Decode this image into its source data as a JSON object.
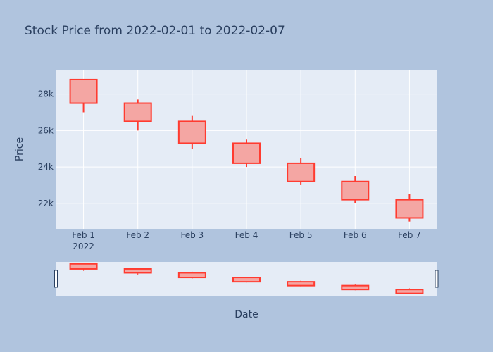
{
  "chart_data": {
    "type": "candlestick",
    "title": "Stock Price from 2022-02-01 to 2022-02-07",
    "xlabel": "Date",
    "ylabel": "Price",
    "ylim": [
      20600,
      29300
    ],
    "yticks": [
      22000,
      24000,
      26000,
      28000
    ],
    "ytick_labels": [
      "22k",
      "24k",
      "26k",
      "28k"
    ],
    "x": [
      "2022-02-01",
      "2022-02-02",
      "2022-02-03",
      "2022-02-04",
      "2022-02-05",
      "2022-02-06",
      "2022-02-07"
    ],
    "xtick_labels": [
      "Feb 1",
      "Feb 2",
      "Feb 3",
      "Feb 4",
      "Feb 5",
      "Feb 6",
      "Feb 7"
    ],
    "xtick_year_label": "2022",
    "series": [
      {
        "open": [
          28800,
          27500,
          26500,
          25300,
          24200,
          23200,
          22200
        ],
        "high": [
          28800,
          27700,
          26800,
          25500,
          24500,
          23500,
          22500
        ],
        "low": [
          27000,
          26000,
          25000,
          24000,
          23000,
          22000,
          21000
        ],
        "close": [
          27500,
          26500,
          25300,
          24200,
          23200,
          22200,
          21200
        ]
      }
    ],
    "grid": true,
    "range_slider": true,
    "colors": {
      "paper": "#b0c4de",
      "plot": "#e5ecf6",
      "decreasing_fill": "#f4a6a3",
      "decreasing_line": "#ff3b30",
      "grid": "#ffffff",
      "text": "#2a3f5f"
    }
  }
}
